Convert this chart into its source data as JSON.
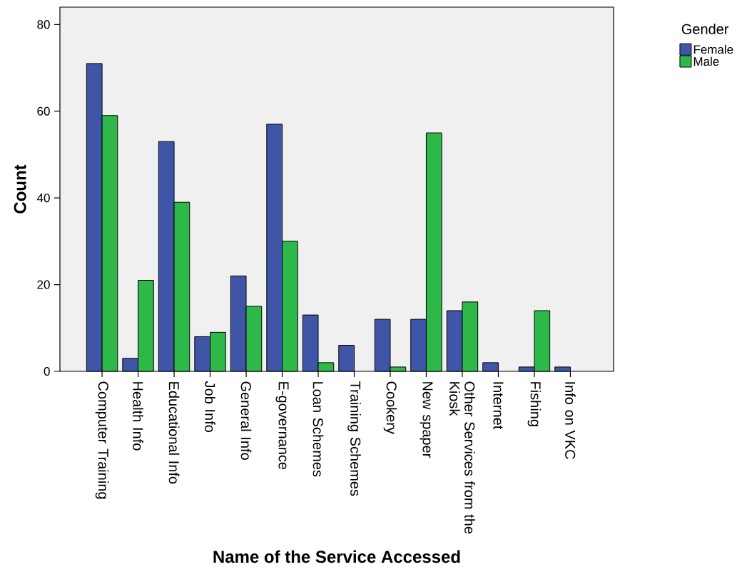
{
  "chart_data": {
    "type": "bar",
    "xlabel": "Name of the Service Accessed",
    "ylabel": "Count",
    "legend_title": "Gender",
    "legend": "top right",
    "categories": [
      "Computer Training",
      "Health Info",
      "Educational Info",
      "Job Info",
      "General Info",
      "E-governance",
      "Loan Schemes",
      "Training Schemes",
      "Cookery",
      "New spaper",
      "Other Services from the Kiosk",
      "Internet",
      "Fishing",
      "Info on VKC"
    ],
    "series": [
      {
        "name": "Female",
        "color": "#3f56a8",
        "values": [
          71,
          3,
          53,
          8,
          22,
          57,
          13,
          6,
          12,
          12,
          14,
          2,
          1,
          1
        ]
      },
      {
        "name": "Male",
        "color": "#2fb84a",
        "values": [
          59,
          21,
          39,
          9,
          15,
          30,
          2,
          null,
          1,
          55,
          16,
          null,
          14,
          null
        ]
      }
    ],
    "ylim": [
      0,
      84
    ],
    "yticks": [
      0,
      20,
      40,
      60,
      80
    ]
  }
}
